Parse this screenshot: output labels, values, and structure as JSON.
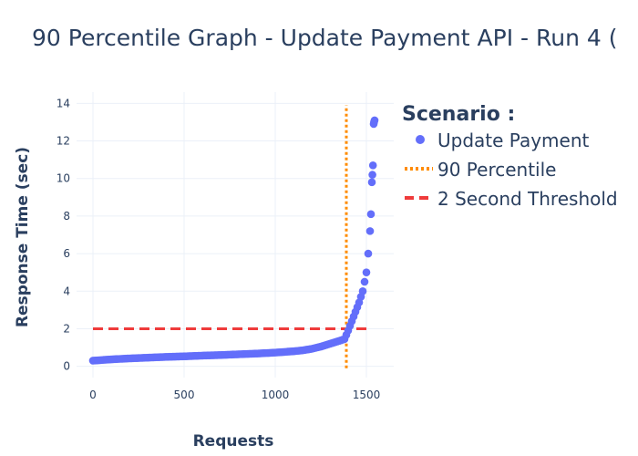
{
  "chart_data": {
    "type": "scatter",
    "title": "90 Percentile Graph - Update Payment API - Run 4 (",
    "xlabel": "Requests",
    "ylabel": "Response Time (sec)",
    "xlim": [
      -90,
      1650
    ],
    "ylim": [
      -0.6,
      14.6
    ],
    "x_ticks": [
      0,
      500,
      1000,
      1500
    ],
    "x_tick_labels": [
      "0",
      "500",
      "1000",
      "1500"
    ],
    "y_ticks": [
      0,
      2,
      4,
      6,
      8,
      10,
      12,
      14
    ],
    "y_tick_labels": [
      "0",
      "2",
      "4",
      "6",
      "8",
      "10",
      "12",
      "14"
    ],
    "grid": true,
    "legend": {
      "title": "Scenario :",
      "placement": "top-right",
      "entries": [
        {
          "label": "Update Payment",
          "symbol": "marker",
          "color": "#636efa"
        },
        {
          "label": "90 Percentile",
          "symbol": "dotted-line",
          "color": "#ff8c00"
        },
        {
          "label": "2 Second Threshold",
          "symbol": "dashed-line",
          "color": "#ef3b3b"
        }
      ]
    },
    "series": [
      {
        "name": "Update Payment",
        "kind": "markers",
        "color": "#636efa",
        "x": [
          0,
          100,
          200,
          300,
          400,
          500,
          600,
          700,
          800,
          900,
          1000,
          1100,
          1150,
          1200,
          1250,
          1300,
          1350,
          1380,
          1400,
          1420,
          1440,
          1460,
          1480,
          1500,
          1510,
          1520,
          1525,
          1530,
          1533,
          1536,
          1540,
          1542,
          1545
        ],
        "y": [
          0.3,
          0.37,
          0.42,
          0.46,
          0.5,
          0.53,
          0.57,
          0.6,
          0.64,
          0.68,
          0.73,
          0.8,
          0.85,
          0.93,
          1.05,
          1.2,
          1.35,
          1.45,
          1.9,
          2.4,
          2.9,
          3.4,
          4.0,
          5.0,
          6.0,
          7.2,
          8.1,
          9.8,
          10.2,
          10.7,
          12.9,
          13.0,
          13.1
        ]
      },
      {
        "name": "90 Percentile",
        "kind": "vertical-line",
        "color": "#ff8c00",
        "x": [
          1390,
          1390
        ],
        "y": [
          -0.1,
          13.9
        ]
      },
      {
        "name": "2 Second Threshold",
        "kind": "horizontal-line",
        "color": "#ef3b3b",
        "x": [
          0,
          1500
        ],
        "y": [
          2,
          2
        ]
      }
    ]
  }
}
